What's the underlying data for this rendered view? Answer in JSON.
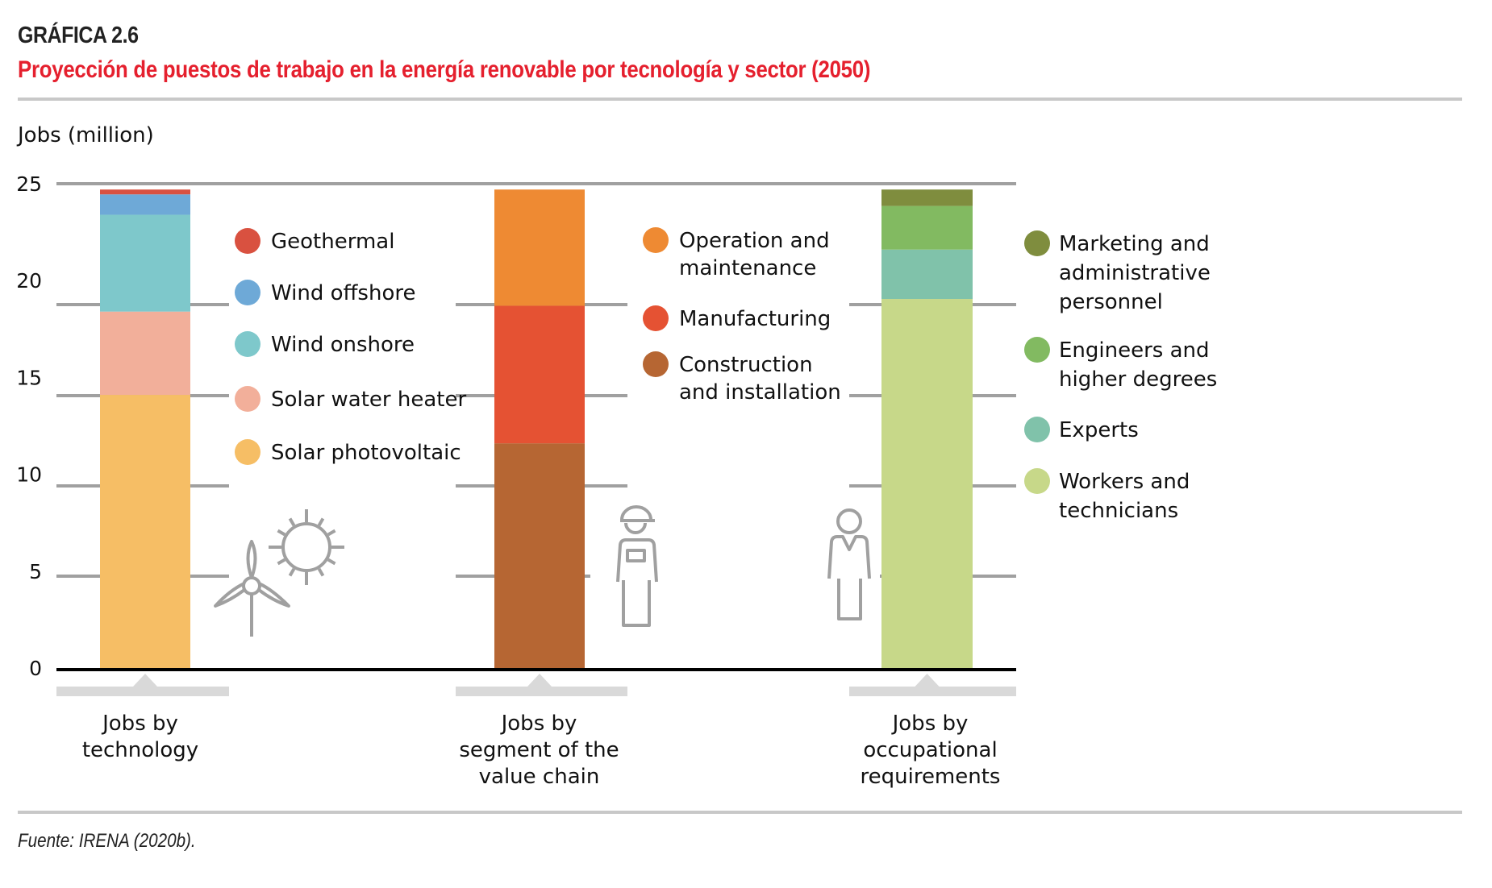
{
  "header": {
    "figure_label": "GRÁFICA 2.6",
    "title": "Proyección de puestos de trabajo en la energía renovable por tecnología y sector (2050)"
  },
  "footer": {
    "source": "Fuente: IRENA (2020b)."
  },
  "chart_data": {
    "type": "bar",
    "stacked": true,
    "title": "Proyección de puestos de trabajo en la energía renovable por tecnología y sector (2050)",
    "ylabel": "Jobs (million)",
    "xlabel": "",
    "ylim": [
      0,
      25
    ],
    "yticks": [
      0,
      5,
      10,
      15,
      20,
      25
    ],
    "grid": true,
    "categories": [
      [
        "Jobs by",
        "technology"
      ],
      [
        "Jobs by",
        "segment of the",
        "value chain"
      ],
      [
        "Jobs by",
        "occupational",
        "requirements"
      ]
    ],
    "bars": [
      {
        "category_index": 0,
        "segments": [
          {
            "name": "Solar photovoltaic",
            "value": 14.1,
            "color": "#f6be65"
          },
          {
            "name": "Solar water heater",
            "value": 4.3,
            "color": "#f2af9a"
          },
          {
            "name": "Wind onshore",
            "value": 5.0,
            "color": "#7ec8cb"
          },
          {
            "name": "Wind offshore",
            "value": 1.05,
            "color": "#6ea9d7"
          },
          {
            "name": "Geothermal",
            "value": 0.25,
            "color": "#d95140"
          }
        ],
        "legend": [
          {
            "lines": [
              "Geothermal"
            ],
            "color": "#d95140"
          },
          {
            "lines": [
              "Wind offshore"
            ],
            "color": "#6ea9d7"
          },
          {
            "lines": [
              "Wind onshore"
            ],
            "color": "#7ec8cb"
          },
          {
            "lines": [
              "Solar water heater"
            ],
            "color": "#f2af9a"
          },
          {
            "lines": [
              "Solar photovoltaic"
            ],
            "color": "#f6be65"
          }
        ],
        "icons": [
          "wind-turbine-icon",
          "sun-icon"
        ]
      },
      {
        "category_index": 1,
        "segments": [
          {
            "name": "Construction and installation",
            "value": 11.6,
            "color": "#b66633"
          },
          {
            "name": "Manufacturing",
            "value": 7.1,
            "color": "#e55233"
          },
          {
            "name": "Operation and maintenance",
            "value": 6.0,
            "color": "#ee8a33"
          }
        ],
        "legend": [
          {
            "lines": [
              "Operation and",
              "maintenance"
            ],
            "color": "#ee8a33"
          },
          {
            "lines": [
              "Manufacturing"
            ],
            "color": "#e55233"
          },
          {
            "lines": [
              "Construction",
              "and installation"
            ],
            "color": "#b66633"
          }
        ],
        "icons": [
          "worker-hardhat-icon"
        ]
      },
      {
        "category_index": 2,
        "segments": [
          {
            "name": "Workers and technicians",
            "value": 19.05,
            "color": "#c7d889"
          },
          {
            "name": "Experts",
            "value": 2.55,
            "color": "#80c2aa"
          },
          {
            "name": "Engineers and higher degrees",
            "value": 2.25,
            "color": "#82ba61"
          },
          {
            "name": "Marketing and administrative personnel",
            "value": 0.85,
            "color": "#7f8d3e"
          }
        ],
        "legend": [
          {
            "lines": [
              "Marketing and",
              "administrative",
              "personnel"
            ],
            "color": "#7f8d3e"
          },
          {
            "lines": [
              "Engineers and",
              "higher degrees"
            ],
            "color": "#82ba61"
          },
          {
            "lines": [
              "Experts"
            ],
            "color": "#80c2aa"
          },
          {
            "lines": [
              "Workers and",
              "technicians"
            ],
            "color": "#c7d889"
          }
        ],
        "icons": [
          "office-worker-icon"
        ]
      }
    ]
  }
}
